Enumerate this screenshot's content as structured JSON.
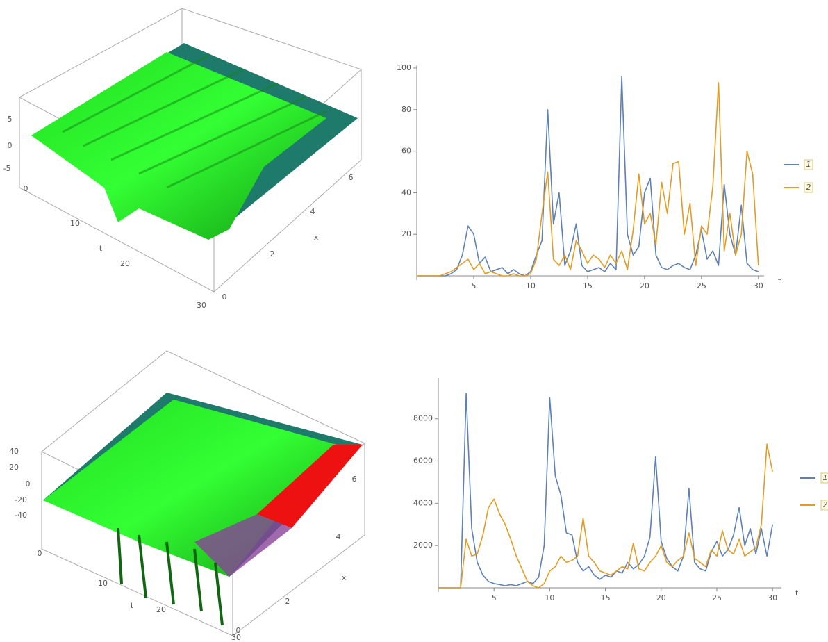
{
  "chart_data": [
    {
      "type": "surface3d",
      "tlabel": "t",
      "xlabel": "x",
      "zticks": [
        5,
        0,
        -5
      ],
      "tticks": [
        0,
        10,
        20,
        30
      ],
      "xticks": [
        0,
        2,
        4,
        6
      ]
    },
    {
      "type": "line",
      "xlabel": "t",
      "xlim": [
        0,
        30.5
      ],
      "ylim": [
        0,
        100
      ],
      "xticks": [
        5,
        10,
        15,
        20,
        25,
        30
      ],
      "yticks": [
        20,
        40,
        60,
        80,
        100
      ],
      "x": [
        0,
        0.5,
        1,
        1.5,
        2,
        2.5,
        3,
        3.5,
        4,
        4.5,
        5,
        5.5,
        6,
        6.5,
        7,
        7.5,
        8,
        8.5,
        9,
        9.5,
        10,
        10.5,
        11,
        11.5,
        12,
        12.5,
        13,
        13.5,
        14,
        14.5,
        15,
        15.5,
        16,
        16.5,
        17,
        17.5,
        18,
        18.5,
        19,
        19.5,
        20,
        20.5,
        21,
        21.5,
        22,
        22.5,
        23,
        23.5,
        24,
        24.5,
        25,
        25.5,
        26,
        26.5,
        27,
        27.5,
        28,
        28.5,
        29,
        29.5,
        30
      ],
      "series": [
        {
          "name": "1",
          "color": "#5e81b5",
          "values": [
            0,
            0,
            0,
            0,
            0,
            0,
            1,
            3,
            10,
            24,
            20,
            6,
            9,
            2,
            3,
            4,
            1,
            3,
            1,
            0,
            2,
            10,
            17,
            80,
            25,
            40,
            5,
            12,
            25,
            5,
            2,
            3,
            4,
            2,
            6,
            3,
            96,
            20,
            10,
            14,
            40,
            47,
            10,
            4,
            3,
            5,
            6,
            4,
            3,
            10,
            22,
            8,
            12,
            5,
            44,
            20,
            10,
            34,
            6,
            3,
            2
          ]
        },
        {
          "name": "2",
          "color": "#e19c24",
          "values": [
            0,
            0,
            0,
            0,
            0,
            1,
            2,
            4,
            6,
            8,
            3,
            6,
            1,
            2,
            1,
            0,
            0,
            1,
            0,
            0,
            1,
            8,
            30,
            50,
            8,
            5,
            10,
            3,
            17,
            12,
            6,
            10,
            8,
            4,
            10,
            6,
            12,
            3,
            22,
            49,
            25,
            30,
            15,
            45,
            30,
            54,
            55,
            20,
            35,
            5,
            24,
            20,
            43,
            93,
            12,
            30,
            10,
            20,
            60,
            49,
            5
          ]
        }
      ]
    },
    {
      "type": "surface3d",
      "tlabel": "t",
      "xlabel": "x",
      "zticks": [
        40,
        20,
        0,
        -20,
        -40
      ],
      "tticks": [
        0,
        10,
        20,
        30
      ],
      "xticks": [
        0,
        2,
        4,
        6
      ]
    },
    {
      "type": "line",
      "xlabel": "t",
      "xlim": [
        0,
        30.8
      ],
      "ylim": [
        0,
        9800
      ],
      "xticks": [
        5,
        10,
        15,
        20,
        25,
        30
      ],
      "yticks": [
        2000,
        4000,
        6000,
        8000
      ],
      "x": [
        0,
        0.5,
        1,
        1.5,
        2,
        2.5,
        3,
        3.5,
        4,
        4.5,
        5,
        5.5,
        6,
        6.5,
        7,
        7.5,
        8,
        8.5,
        9,
        9.5,
        10,
        10.5,
        11,
        11.5,
        12,
        12.5,
        13,
        13.5,
        14,
        14.5,
        15,
        15.5,
        16,
        16.5,
        17,
        17.5,
        18,
        18.5,
        19,
        19.5,
        20,
        20.5,
        21,
        21.5,
        22,
        22.5,
        23,
        23.5,
        24,
        24.5,
        25,
        25.5,
        26,
        26.5,
        27,
        27.5,
        28,
        28.5,
        29,
        29.5,
        30
      ],
      "series": [
        {
          "name": "1",
          "color": "#5e81b5",
          "values": [
            0,
            0,
            0,
            0,
            0,
            9200,
            2800,
            1200,
            600,
            300,
            200,
            150,
            100,
            150,
            100,
            200,
            300,
            200,
            500,
            2000,
            9000,
            5300,
            4400,
            2600,
            2500,
            1200,
            800,
            1000,
            600,
            400,
            600,
            500,
            800,
            700,
            1200,
            900,
            1100,
            1500,
            2400,
            6200,
            2200,
            1400,
            1000,
            800,
            1500,
            4700,
            1200,
            900,
            800,
            1700,
            2200,
            1500,
            1800,
            2500,
            3800,
            2000,
            2800,
            1600,
            2800,
            1500,
            3000
          ]
        },
        {
          "name": "2",
          "color": "#e19c24",
          "values": [
            0,
            0,
            0,
            0,
            0,
            2300,
            1500,
            1600,
            2500,
            3800,
            4200,
            3500,
            3000,
            2300,
            1500,
            900,
            300,
            100,
            0,
            200,
            800,
            1000,
            1500,
            1200,
            1300,
            1500,
            3300,
            1500,
            1200,
            800,
            700,
            600,
            800,
            1000,
            900,
            2100,
            900,
            800,
            1200,
            1500,
            2000,
            1200,
            1000,
            1300,
            1500,
            2600,
            1400,
            1200,
            1000,
            1800,
            1500,
            2700,
            1800,
            1600,
            2300,
            1500,
            1700,
            1900,
            3000,
            6800,
            5500
          ]
        }
      ]
    }
  ]
}
